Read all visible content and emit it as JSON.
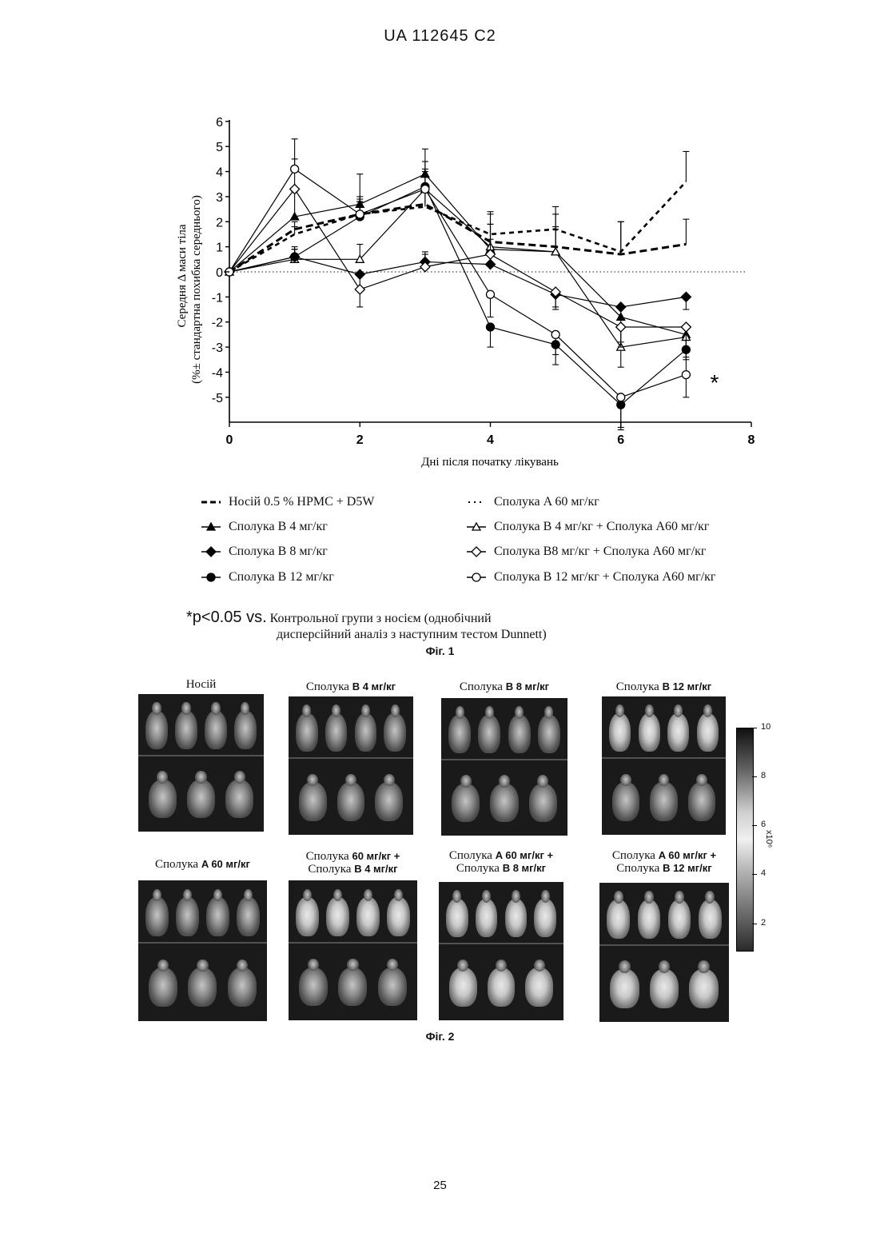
{
  "header": "UA 112645 C2",
  "page_number": "25",
  "figure1": {
    "caption": "Фіг. 1",
    "significance_marker": "*",
    "note_prefix": "*p<0.05 vs.",
    "note_line1": "Контрольної групи з носієм (однобічний",
    "note_line2": "дисперсійний аналіз з наступним тестом Dunnett)"
  },
  "chart_data": {
    "type": "line",
    "title": "",
    "xlabel": "Дні після початку лікувань",
    "ylabel_line1": "Середня Δ маси тіла",
    "ylabel_line2": "(%± стандартна похибка середнього)",
    "xlim": [
      0,
      8
    ],
    "ylim": [
      -6,
      6
    ],
    "x_ticks": [
      "0",
      "2",
      "4",
      "8"
    ],
    "x_ticks_all": [
      "0",
      "2",
      "4",
      "6",
      "8"
    ],
    "y_ticks": [
      "6",
      "5",
      "4",
      "3",
      "2",
      "1",
      "0",
      "-1",
      "-2",
      "-3",
      "-4",
      "-5"
    ],
    "x": [
      0,
      1,
      2,
      3,
      4,
      5,
      6,
      7
    ],
    "series": [
      {
        "name": "Носій 0.5 % HPMC + D5W",
        "style": "dashed",
        "marker": "none",
        "values": [
          0,
          1.7,
          2.3,
          2.7,
          1.2,
          1.0,
          0.7,
          1.1
        ],
        "err": [
          0,
          0.3,
          0.5,
          0.6,
          1.2,
          1.3,
          1.3,
          1.0
        ]
      },
      {
        "name": "Сполука A 60 мг/кг",
        "style": "dotted-heavy",
        "marker": "none",
        "values": [
          0,
          1.5,
          2.3,
          2.6,
          1.5,
          1.7,
          0.8,
          3.6
        ],
        "err": [
          0,
          0.3,
          0.6,
          0.6,
          0.8,
          0.9,
          1.2,
          1.2
        ]
      },
      {
        "name": "Сполука B 4 мг/кг",
        "style": "solid",
        "marker": "triangle-filled",
        "values": [
          0,
          2.2,
          2.7,
          3.9,
          0.9,
          0.8,
          -1.8,
          -2.5
        ],
        "err": [
          0,
          1.0,
          1.2,
          1.0,
          1.0,
          1.0,
          1.0,
          1.0
        ]
      },
      {
        "name": "Сполука B 4 мг/кг + Сполука A60 мг/кг",
        "style": "solid",
        "marker": "triangle-open",
        "values": [
          0,
          0.5,
          0.5,
          3.3,
          1.0,
          0.8,
          -3.0,
          -2.6
        ],
        "err": [
          0,
          0.4,
          0.6,
          0.8,
          0.9,
          0.9,
          0.8,
          0.8
        ]
      },
      {
        "name": "Сполука B 8 мг/кг",
        "style": "solid",
        "marker": "diamond-filled",
        "values": [
          0,
          0.6,
          -0.1,
          0.4,
          0.3,
          -0.9,
          -1.4,
          -1.0
        ],
        "err": [
          0,
          0.3,
          0.6,
          0.4,
          0.4,
          0.5,
          0.5,
          0.5
        ]
      },
      {
        "name": "Сполука B8 мг/кг + Сполука A60 мг/кг",
        "style": "solid",
        "marker": "diamond-open",
        "values": [
          0,
          3.3,
          -0.7,
          0.2,
          0.7,
          -0.8,
          -2.2,
          -2.2
        ],
        "err": [
          0,
          1.2,
          0.7,
          0.5,
          0.6,
          0.7,
          0.8,
          0.8
        ]
      },
      {
        "name": "Сполука B 12 мг/кг",
        "style": "solid",
        "marker": "circle-filled",
        "values": [
          0,
          0.6,
          2.2,
          3.4,
          -2.2,
          -2.9,
          -5.3,
          -3.1
        ],
        "err": [
          0,
          0.4,
          0.6,
          1.0,
          0.8,
          0.8,
          0.9,
          0.9
        ]
      },
      {
        "name": "Сполука B 12 мг/кг + Сполука A60 мг/кг",
        "style": "solid",
        "marker": "circle-open",
        "values": [
          0,
          4.1,
          2.3,
          3.3,
          -0.9,
          -2.5,
          -5.0,
          -4.1
        ],
        "err": [
          0,
          1.2,
          0.7,
          0.7,
          0.9,
          0.8,
          1.3,
          0.9
        ]
      }
    ],
    "legend_placement": "bottom"
  },
  "legend": [
    {
      "label": "Носій 0.5 % HPMC + D5W",
      "marker": "dashed"
    },
    {
      "label": "Сполука A 60 мг/кг",
      "marker": "dotted"
    },
    {
      "label": "Сполука B 4 мг/кг",
      "marker": "triangle-filled"
    },
    {
      "label": "Сполука B 4 мг/кг + Сполука A60 мг/кг",
      "marker": "triangle-open"
    },
    {
      "label": "Сполука B 8 мг/кг",
      "marker": "diamond-filled"
    },
    {
      "label": "Сполука B8 мг/кг + Сполука A60 мг/кг",
      "marker": "diamond-open"
    },
    {
      "label": "Сполука B 12 мг/кг",
      "marker": "circle-filled"
    },
    {
      "label": "Сполука B 12 мг/кг + Сполука A60 мг/кг",
      "marker": "circle-open"
    }
  ],
  "figure2": {
    "caption": "Фіг. 2",
    "panels": [
      {
        "line1_text": "Носій",
        "line1_bold": "",
        "line2_text": "",
        "line2_bold": ""
      },
      {
        "line1_text": "Сполука ",
        "line1_bold": "B 4 мг/кг",
        "line2_text": "",
        "line2_bold": ""
      },
      {
        "line1_text": "Сполука ",
        "line1_bold": "B 8 мг/кг",
        "line2_text": "",
        "line2_bold": ""
      },
      {
        "line1_text": "Сполука ",
        "line1_bold": "B 12 мг/кг",
        "line2_text": "",
        "line2_bold": ""
      },
      {
        "line1_text": "Сполука ",
        "line1_bold": "A 60 мг/кг",
        "line2_text": "",
        "line2_bold": ""
      },
      {
        "line1_text": "Сполука ",
        "line1_bold": "60 мг/кг +",
        "line2_text": "Сполука ",
        "line2_bold": "B 4 мг/кг"
      },
      {
        "line1_text": "Сполука ",
        "line1_bold": "A 60 мг/кг +",
        "line2_text": "Сполука ",
        "line2_bold": "B 8 мг/кг"
      },
      {
        "line1_text": "Сполука ",
        "line1_bold": "A 60 мг/кг +",
        "line2_text": "Сполука ",
        "line2_bold": "B 12 мг/кг"
      }
    ],
    "scale_ticks": [
      "10",
      "8",
      "6",
      "4",
      "2"
    ],
    "scale_unit": "x10⁶"
  }
}
